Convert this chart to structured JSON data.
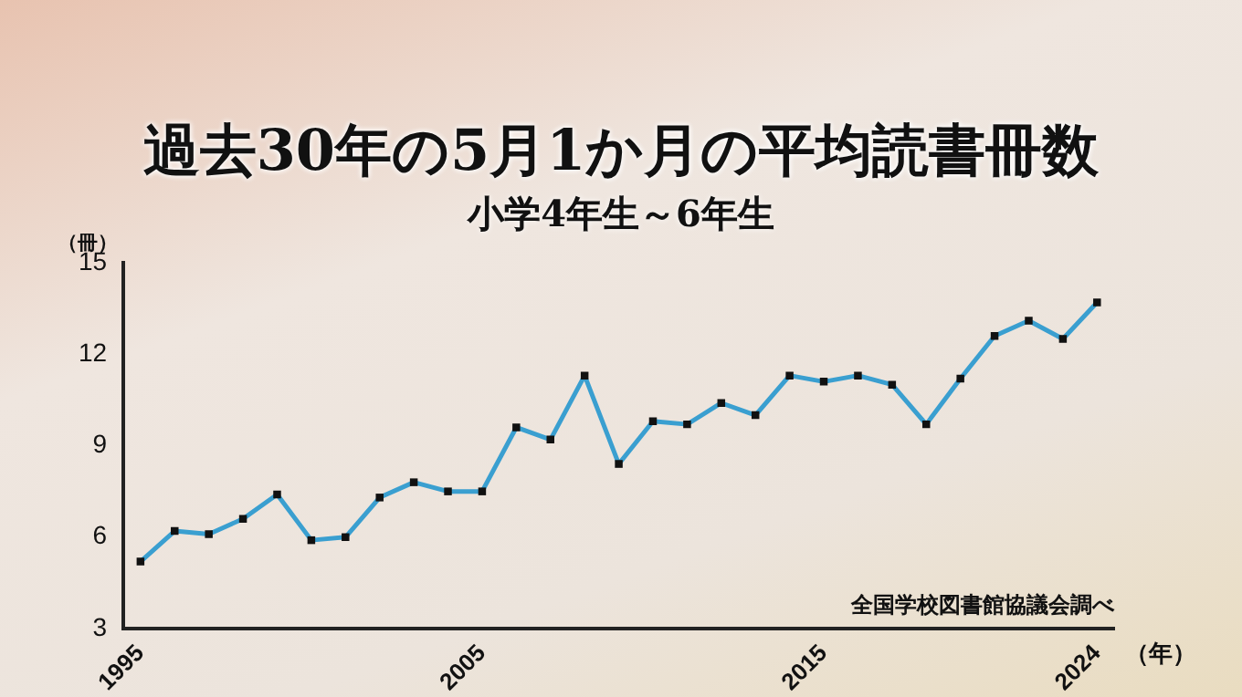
{
  "chart_data": {
    "type": "line",
    "title": "過去30年の5月1か月の平均読書冊数",
    "subtitle": "小学4年生～6年生",
    "ylabel": "（冊）",
    "xlabel": "（年）",
    "annotations": [
      "全国学校図書館協議会調べ"
    ],
    "categories": [
      "1995",
      null,
      null,
      null,
      null,
      null,
      null,
      null,
      null,
      null,
      "2005",
      null,
      null,
      null,
      null,
      null,
      null,
      null,
      null,
      null,
      "2015",
      null,
      null,
      null,
      null,
      null,
      null,
      null,
      "2024"
    ],
    "series": [
      {
        "color": "#3a9fd0",
        "values": [
          5.2,
          6.2,
          6.1,
          6.6,
          7.4,
          5.9,
          6.0,
          7.3,
          7.8,
          7.5,
          7.5,
          9.6,
          9.2,
          11.3,
          8.4,
          9.8,
          9.7,
          10.4,
          10.0,
          11.3,
          11.1,
          11.3,
          11.0,
          9.7,
          11.2,
          12.6,
          13.1,
          12.5,
          13.7
        ]
      }
    ],
    "ylim": [
      3,
      15
    ],
    "yticks": [
      3,
      6,
      9,
      12,
      15
    ],
    "marker": "square",
    "line_style": "solid",
    "grid": false,
    "legend": false
  }
}
